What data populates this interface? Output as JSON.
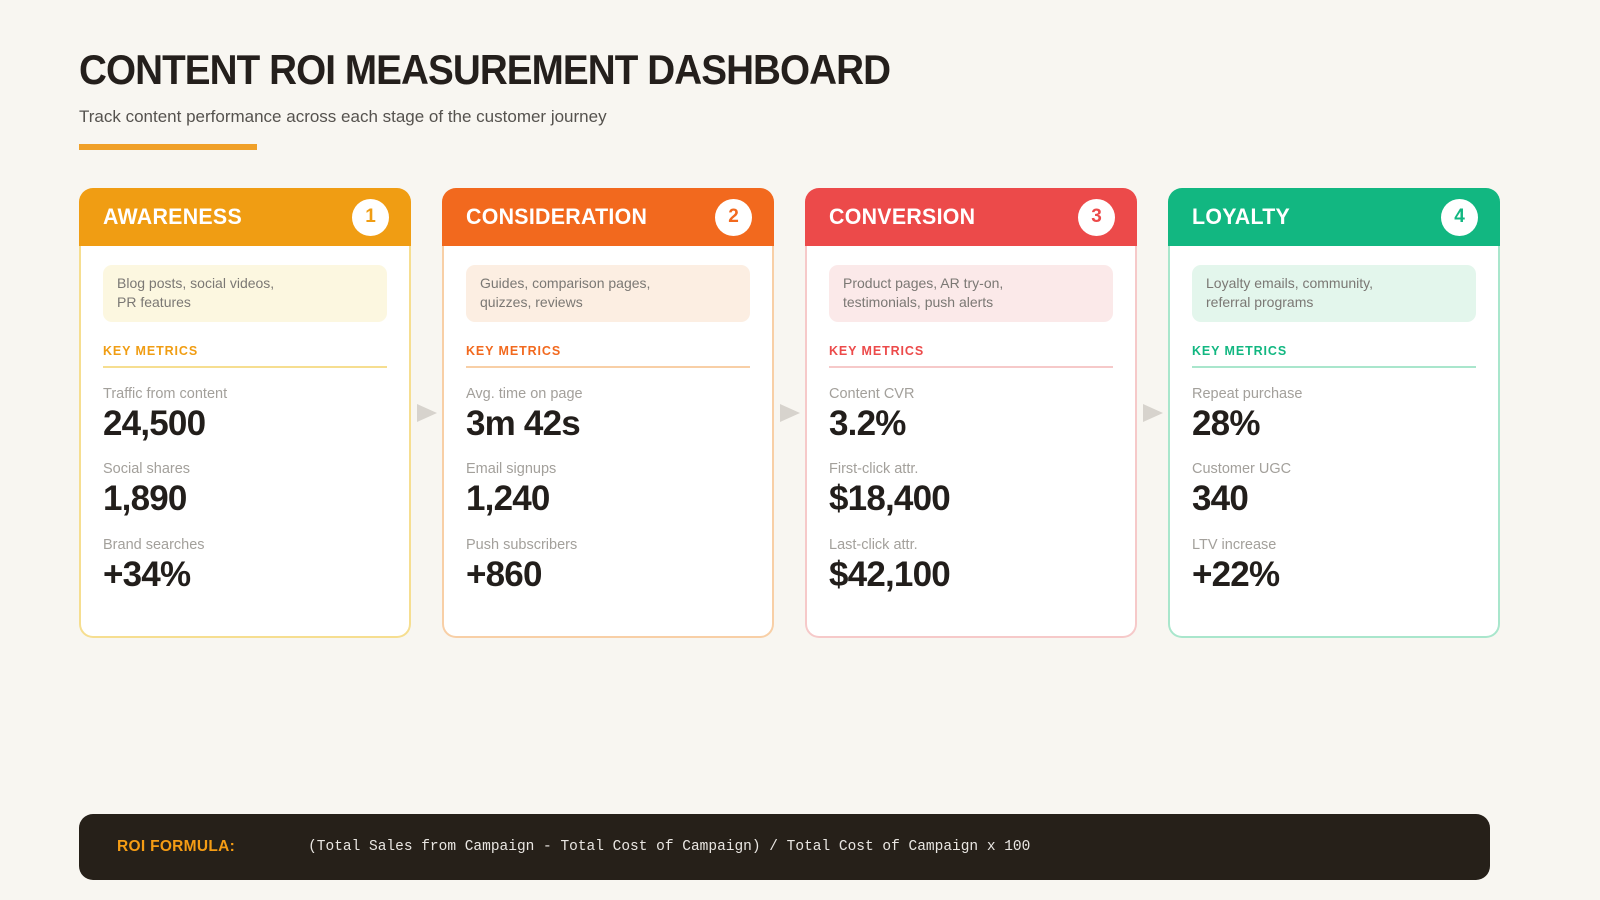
{
  "page": {
    "title": "CONTENT ROI MEASUREMENT DASHBOARD",
    "subtitle": "Track content performance across each stage of the customer journey",
    "background_color": "#F8F6F1",
    "accent_rule_color": "#F0A028"
  },
  "cards": [
    {
      "stage": "AWARENESS",
      "number": "1",
      "accent_color": "#F09D13",
      "border_color": "#F6DE90",
      "desc_bg": "#FCF7E0",
      "description": "Blog posts, social videos,\nPR features",
      "key_metrics_label": "KEY METRICS",
      "metrics": [
        {
          "label": "Traffic from content",
          "value": "24,500"
        },
        {
          "label": "Social shares",
          "value": "1,890"
        },
        {
          "label": "Brand searches",
          "value": "+34%"
        }
      ]
    },
    {
      "stage": "CONSIDERATION",
      "number": "2",
      "accent_color": "#F2691E",
      "border_color": "#F8CFA6",
      "desc_bg": "#FCEEE2",
      "description": "Guides, comparison pages,\nquizzes, reviews",
      "key_metrics_label": "KEY METRICS",
      "metrics": [
        {
          "label": "Avg. time on page",
          "value": "3m 42s"
        },
        {
          "label": "Email signups",
          "value": "1,240"
        },
        {
          "label": "Push subscribers",
          "value": "+860"
        }
      ]
    },
    {
      "stage": "CONVERSION",
      "number": "3",
      "accent_color": "#EC4A4A",
      "border_color": "#F6C9C9",
      "desc_bg": "#FBE9E9",
      "description": "Product pages, AR try-on,\ntestimonials, push alerts",
      "key_metrics_label": "KEY METRICS",
      "metrics": [
        {
          "label": "Content CVR",
          "value": "3.2%"
        },
        {
          "label": "First-click attr.",
          "value": "$18,400"
        },
        {
          "label": "Last-click attr.",
          "value": "$42,100"
        }
      ]
    },
    {
      "stage": "LOYALTY",
      "number": "4",
      "accent_color": "#12B781",
      "border_color": "#A9E6CC",
      "desc_bg": "#E3F6EC",
      "description": "Loyalty emails, community,\nreferral programs",
      "key_metrics_label": "KEY METRICS",
      "metrics": [
        {
          "label": "Repeat purchase",
          "value": "28%"
        },
        {
          "label": "Customer UGC",
          "value": "340"
        },
        {
          "label": "LTV increase",
          "value": "+22%"
        }
      ]
    }
  ],
  "footer": {
    "label": "ROI FORMULA:",
    "formula": "(Total Sales from Campaign - Total Cost of Campaign) / Total Cost of Campaign x 100",
    "bg_color": "#262019",
    "label_color": "#F59C14"
  }
}
